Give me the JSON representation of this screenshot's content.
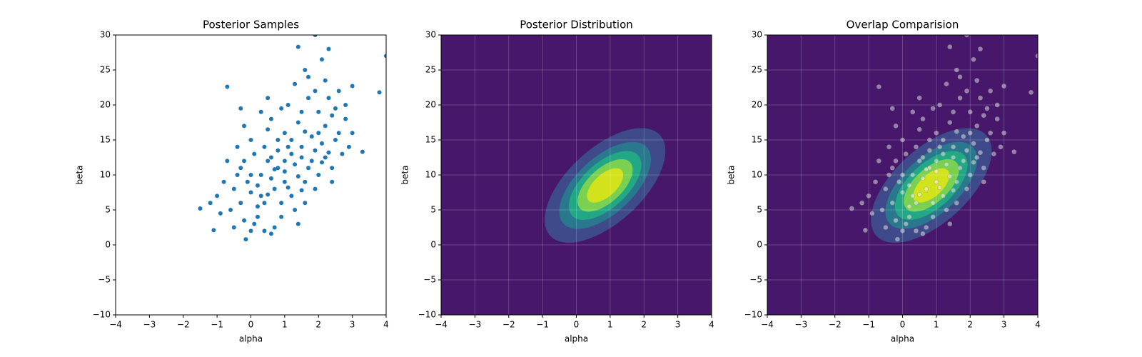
{
  "chart_data": [
    {
      "type": "scatter",
      "title": "Posterior Samples",
      "xlabel": "alpha",
      "ylabel": "beta",
      "color": "#1f77b4",
      "grid": false,
      "xlim": [
        -4,
        4
      ],
      "ylim": [
        -10,
        30
      ],
      "xticks": [
        {
          "value": -4,
          "label": "−4"
        },
        {
          "value": -3,
          "label": "−3"
        },
        {
          "value": -2,
          "label": "−2"
        },
        {
          "value": -1,
          "label": "−1"
        },
        0,
        1,
        2,
        3,
        4
      ],
      "yticks": [
        {
          "value": -10,
          "label": "−10"
        },
        {
          "value": -5,
          "label": "−5"
        },
        0,
        5,
        10,
        15,
        20,
        25,
        30
      ],
      "x": [
        -0.7,
        1.9,
        4,
        3.8,
        3.3,
        -1.5,
        -1.1,
        -0.15,
        0.6,
        2.3,
        1.4,
        1.6,
        2.1,
        -0.3,
        3.0,
        0,
        0.5,
        1,
        1.5,
        2,
        0.3,
        0.8,
        1.2,
        -0.5,
        -0.3,
        0.2,
        0.9,
        1.8,
        2.2,
        2.5,
        1.0,
        0.4,
        -0.2,
        1.6,
        2.8,
        -0.8,
        -1.0,
        0.1,
        0.7,
        1.3,
        1.9,
        2.4,
        2.7,
        3.0,
        0.6,
        1.1,
        1.7,
        2.0,
        -0.4,
        0.0,
        0.5,
        1.4,
        2.3,
        2.6,
        -0.6,
        -0.9,
        0.2,
        0.6,
        1.0,
        1.3,
        1.5,
        1.9,
        2.1,
        0.3,
        0.7,
        1.2,
        1.6,
        2.0,
        2.4,
        -0.1,
        0.4,
        0.9,
        1.4,
        0.0,
        -0.5,
        -0.3,
        0.1,
        0.8,
        1.1,
        1.8,
        2.2,
        2.6,
        2.9,
        -0.7,
        -1.2,
        -0.2,
        0.3,
        0.9,
        1.5,
        2.5,
        2.8,
        1.3,
        1.7,
        0.5,
        2.2,
        1.9,
        0.2,
        0.5,
        1.1,
        1.4,
        1.7,
        2.1,
        0.0,
        -0.4,
        0.6,
        1.2,
        1.6,
        0.8,
        2.4,
        -0.2,
        0.4,
        1.0,
        0.7,
        1.5,
        2.3
      ],
      "y": [
        22.6,
        30,
        27,
        21.8,
        13.3,
        5.2,
        2.1,
        0.8,
        1.6,
        28,
        28.3,
        25,
        26.5,
        19.5,
        22.7,
        10,
        12,
        9,
        14,
        16,
        7,
        11,
        13,
        8,
        6,
        4,
        6,
        12,
        17,
        15,
        16,
        14,
        12,
        9,
        18,
        9,
        7,
        3,
        2.5,
        5,
        8,
        11,
        13,
        16,
        18,
        20,
        21,
        19,
        14,
        15,
        16.5,
        17.5,
        21,
        22,
        5,
        4.5,
        8.5,
        9.5,
        10.5,
        11.5,
        12.5,
        13.5,
        14.5,
        10,
        8,
        7,
        6,
        10,
        9,
        9,
        6,
        4,
        3,
        2,
        2.5,
        11,
        13,
        15,
        14,
        15.5,
        12.5,
        16,
        14,
        12,
        6,
        17,
        19,
        19.5,
        19,
        19.5,
        20,
        23,
        24,
        21,
        23.5,
        22,
        5.5,
        7.2,
        8.2,
        9.8,
        11,
        11.8,
        7.5,
        10,
        12.5,
        15,
        16.2,
        13.5,
        18.5,
        3.5,
        2,
        12,
        10.8,
        7.8,
        13.2
      ]
    },
    {
      "type": "density",
      "title": "Posterior Distribution",
      "xlabel": "alpha",
      "ylabel": "beta",
      "grid": true,
      "xlim": [
        -4,
        4
      ],
      "ylim": [
        -10,
        30
      ],
      "xticks": [
        {
          "value": -4,
          "label": "−4"
        },
        {
          "value": -3,
          "label": "−3"
        },
        {
          "value": -2,
          "label": "−2"
        },
        {
          "value": -1,
          "label": "−1"
        },
        0,
        1,
        2,
        3,
        4
      ],
      "yticks": [
        {
          "value": -10,
          "label": "−10"
        },
        {
          "value": -5,
          "label": "−5"
        },
        0,
        5,
        10,
        15,
        20,
        25,
        30
      ],
      "background": "#46176a",
      "mean": [
        0.85,
        8.5
      ],
      "sd": [
        0.85,
        3.9
      ],
      "rho": 0.6,
      "levels": [
        0.11,
        0.28,
        0.45,
        0.63,
        0.82
      ],
      "level_colors": [
        "#3e4a89",
        "#2a788e",
        "#22a884",
        "#7ad151",
        "#d2e21b"
      ]
    },
    {
      "type": "overlay",
      "title": "Overlap Comparision",
      "xlabel": "alpha",
      "ylabel": "beta",
      "grid": true,
      "xlim": [
        -4,
        4
      ],
      "ylim": [
        -10,
        30
      ],
      "xticks": [
        {
          "value": -4,
          "label": "−4"
        },
        {
          "value": -3,
          "label": "−3"
        },
        {
          "value": -2,
          "label": "−2"
        },
        {
          "value": -1,
          "label": "−1"
        },
        0,
        1,
        2,
        3,
        4
      ],
      "yticks": [
        {
          "value": -10,
          "label": "−10"
        },
        {
          "value": -5,
          "label": "−5"
        },
        0,
        5,
        10,
        15,
        20,
        25,
        30
      ],
      "point_color": "#ffffff",
      "point_opacity": 0.45
    }
  ]
}
